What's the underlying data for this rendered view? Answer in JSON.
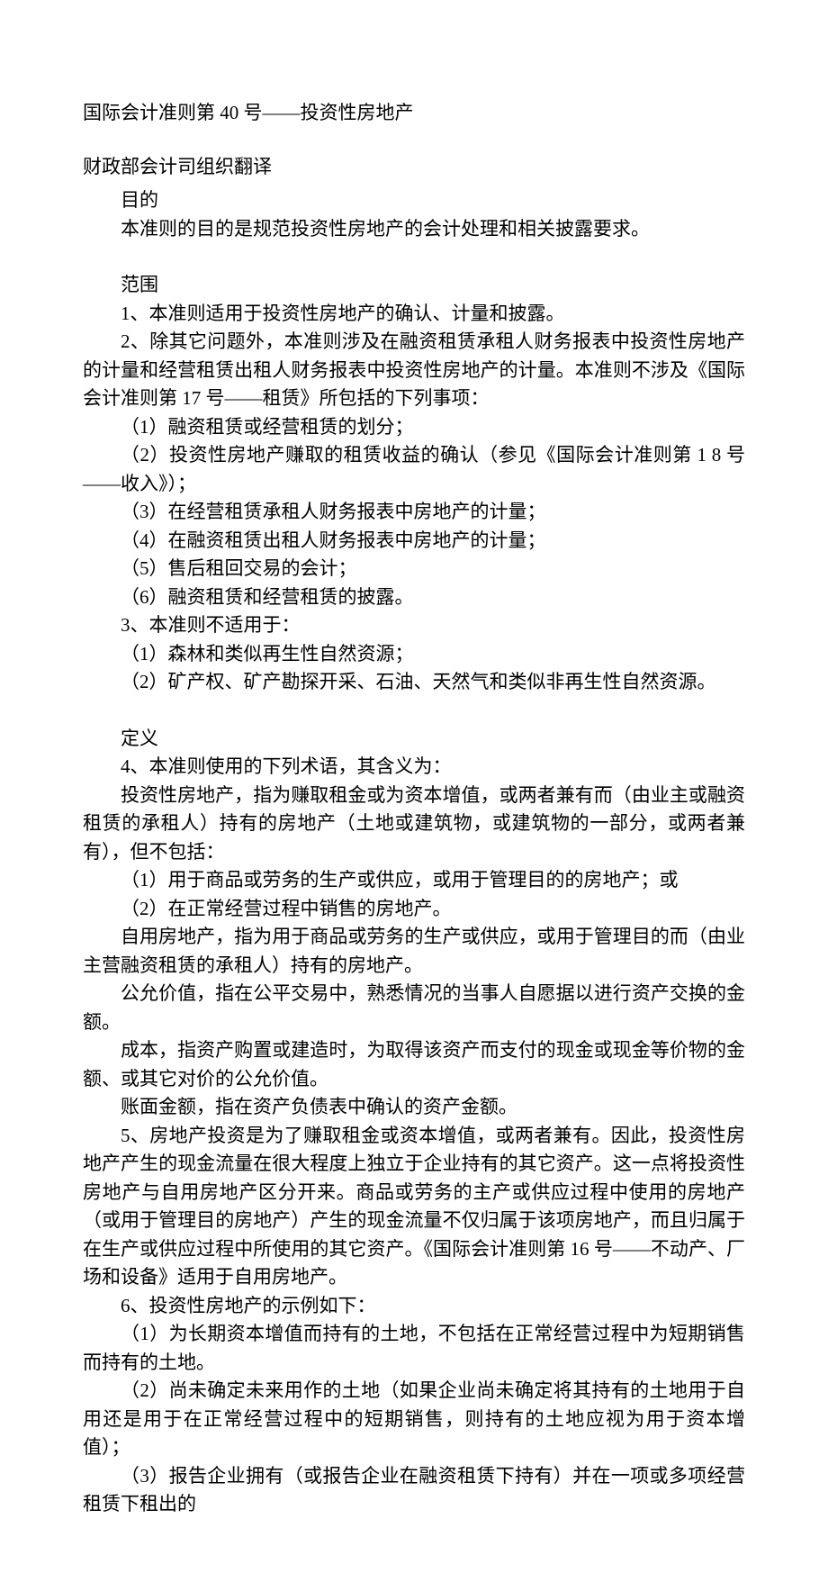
{
  "title": "国际会计准则第 40 号——投资性房地产",
  "subtitle": "财政部会计司组织翻译",
  "section1": {
    "heading": "目的",
    "p1": "本准则的目的是规范投资性房地产的会计处理和相关披露要求。"
  },
  "section2": {
    "heading": "范围",
    "p1": "1、本准则适用于投资性房地产的确认、计量和披露。",
    "p2": "2、除其它问题外，本准则涉及在融资租赁承租人财务报表中投资性房地产的计量和经营租赁出租人财务报表中投资性房地产的计量。本准则不涉及《国际会计准则第 17 号——租赁》所包括的下列事项：",
    "p3": "（1）融资租赁或经营租赁的划分；",
    "p4": "（2）投资性房地产赚取的租赁收益的确认（参见《国际会计准则第 1 8 号——收入》）；",
    "p5": "（3）在经营租赁承租人财务报表中房地产的计量；",
    "p6": "（4）在融资租赁出租人财务报表中房地产的计量；",
    "p7": "（5）售后租回交易的会计；",
    "p8": "（6）融资租赁和经营租赁的披露。",
    "p9": "3、本准则不适用于：",
    "p10": "（1）森林和类似再生性自然资源；",
    "p11": "（2）矿产权、矿产勘探开采、石油、天然气和类似非再生性自然资源。"
  },
  "section3": {
    "heading": "定义",
    "p1": "4、本准则使用的下列术语，其含义为：",
    "p2": "投资性房地产，指为赚取租金或为资本增值，或两者兼有而（由业主或融资租赁的承租人）持有的房地产（土地或建筑物，或建筑物的一部分，或两者兼有），但不包括：",
    "p3": "（1）用于商品或劳务的生产或供应，或用于管理目的的房地产；或",
    "p4": "（2）在正常经营过程中销售的房地产。",
    "p5": "自用房地产，指为用于商品或劳务的生产或供应，或用于管理目的而（由业主营融资租赁的承租人）持有的房地产。",
    "p6": "公允价值，指在公平交易中，熟悉情况的当事人自愿据以进行资产交换的金额。",
    "p7": "成本，指资产购置或建造时，为取得该资产而支付的现金或现金等价物的金额、或其它对价的公允价值。",
    "p8": "账面金额，指在资产负债表中确认的资产金额。",
    "p9": "5、房地产投资是为了赚取租金或资本增值，或两者兼有。因此，投资性房地产产生的现金流量在很大程度上独立于企业持有的其它资产。这一点将投资性房地产与自用房地产区分开来。商品或劳务的主产或供应过程中使用的房地产（或用于管理目的房地产）产生的现金流量不仅归属于该项房地产，而且归属于在生产或供应过程中所使用的其它资产。《国际会计准则第 16 号——不动产、厂场和设备》适用于自用房地产。",
    "p10": "6、投资性房地产的示例如下：",
    "p11": "（1）为长期资本增值而持有的土地，不包括在正常经营过程中为短期销售而持有的土地。",
    "p12": "（2）尚未确定未来用作的土地（如果企业尚未确定将其持有的土地用于自用还是用于在正常经营过程中的短期销售，则持有的土地应视为用于资本增值）；",
    "p13": "（3）报告企业拥有（或报告企业在融资租赁下持有）并在一项或多项经营租赁下租出的"
  }
}
